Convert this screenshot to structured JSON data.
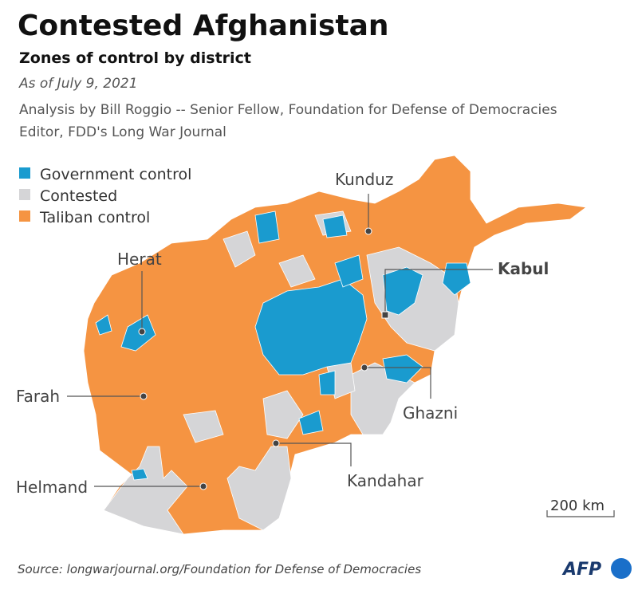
{
  "header": {
    "title": "Contested Afghanistan",
    "subtitle": "Zones of control by district",
    "date": "As of July 9, 2021",
    "analysis": [
      "Analysis by Bill Roggio -- Senior Fellow, Foundation for Defense of Democracies",
      "Editor, FDD's Long War Journal"
    ]
  },
  "legend": [
    {
      "label": "Government control",
      "color": "#1a9bcf"
    },
    {
      "label": "Contested",
      "color": "#d5d5d7"
    },
    {
      "label": "Taliban control",
      "color": "#f59442"
    }
  ],
  "cities": [
    "Kunduz",
    "Kabul",
    "Herat",
    "Farah",
    "Ghazni",
    "Kandahar",
    "Helmand"
  ],
  "scale": "200 km",
  "source": "Source: longwarjournal.org/Foundation for Defense of Democracies",
  "logo": "AFP"
}
